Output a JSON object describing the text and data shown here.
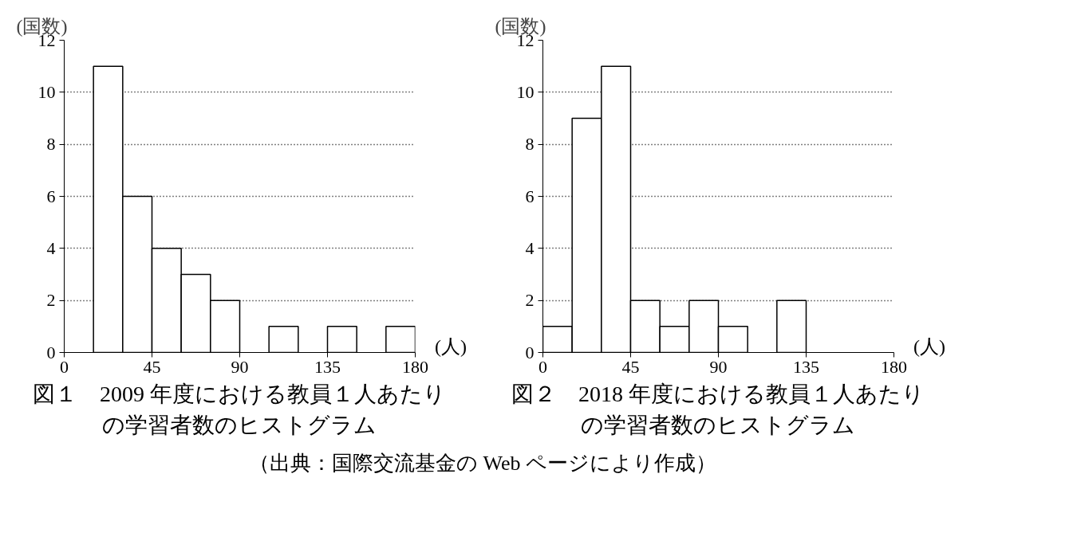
{
  "chart_data": [
    {
      "type": "histogram",
      "title": "図１　2009 年度における教員１人あたりの学習者数のヒストグラム",
      "xlabel": "(人)",
      "ylabel": "(国数)",
      "bins": [
        15,
        30,
        45,
        60,
        75,
        90,
        105,
        120,
        135,
        150,
        165,
        180
      ],
      "values": [
        11,
        6,
        4,
        3,
        2,
        0,
        1,
        0,
        1,
        0,
        1
      ],
      "color": "#ffffff",
      "xlim": [
        0,
        180
      ],
      "ylim": [
        0,
        12
      ],
      "xticks": [
        0,
        45,
        90,
        135,
        180
      ],
      "yticks": [
        0,
        2,
        4,
        6,
        8,
        10,
        12
      ],
      "grid": "y"
    },
    {
      "type": "histogram",
      "title": "図２　2018 年度における教員１人あたりの学習者数のヒストグラム",
      "xlabel": "(人)",
      "ylabel": "(国数)",
      "bins": [
        0,
        15,
        30,
        45,
        60,
        75,
        90,
        105,
        120,
        135
      ],
      "values": [
        1,
        9,
        11,
        2,
        1,
        2,
        1,
        0,
        2
      ],
      "color": "#ffffff",
      "xlim": [
        0,
        180
      ],
      "ylim": [
        0,
        12
      ],
      "xticks": [
        0,
        45,
        90,
        135,
        180
      ],
      "yticks": [
        0,
        2,
        4,
        6,
        8,
        10,
        12
      ],
      "grid": "y",
      "annotations": [
        "（出典：国際交流基金の Web ページにより作成）"
      ]
    }
  ]
}
